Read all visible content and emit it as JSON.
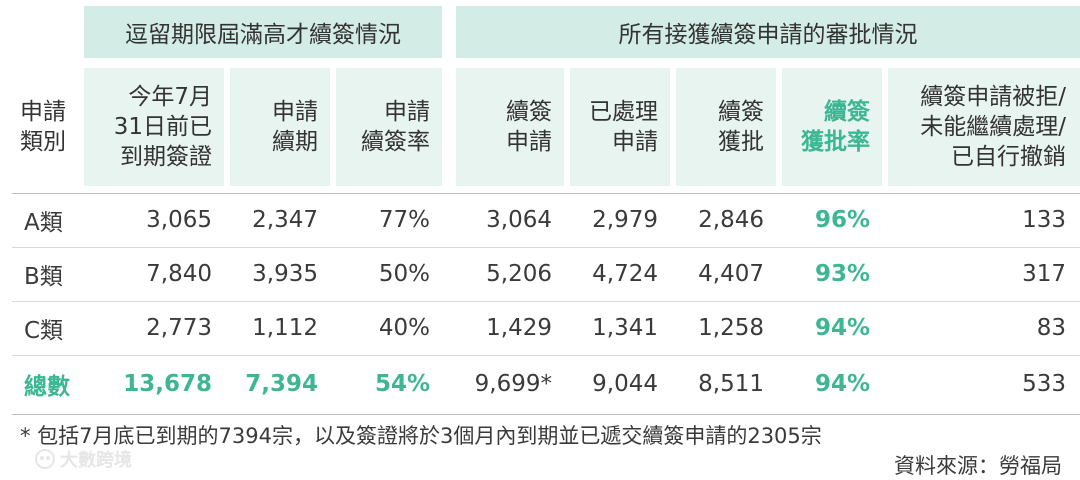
{
  "group_headers": {
    "left": "逗留期限屆滿高才續簽情況",
    "right": "所有接獲續簽申請的審批情況"
  },
  "columns": {
    "category": "申請\n類別",
    "expiring": "今年7月\n31日前已\n到期簽證",
    "applied": "申請\n續期",
    "renewal_rate": "申請\n續簽率",
    "renewal_apps": "續簽\n申請",
    "processed": "已處理\n申請",
    "approved": "續簽\n獲批",
    "approval_rate": "續簽\n獲批率",
    "rejected": "續簽申請被拒/\n未能繼續處理/\n已自行撤銷"
  },
  "rows": [
    {
      "category": "A類",
      "expiring": "3,065",
      "applied": "2,347",
      "renewal_rate": "77%",
      "renewal_apps": "3,064",
      "processed": "2,979",
      "approved": "2,846",
      "approval_rate": "96%",
      "rejected": "133"
    },
    {
      "category": "B類",
      "expiring": "7,840",
      "applied": "3,935",
      "renewal_rate": "50%",
      "renewal_apps": "5,206",
      "processed": "4,724",
      "approved": "4,407",
      "approval_rate": "93%",
      "rejected": "317"
    },
    {
      "category": "C類",
      "expiring": "2,773",
      "applied": "1,112",
      "renewal_rate": "40%",
      "renewal_apps": "1,429",
      "processed": "1,341",
      "approved": "1,258",
      "approval_rate": "94%",
      "rejected": "83"
    }
  ],
  "total": {
    "category": "總數",
    "expiring": "13,678",
    "applied": "7,394",
    "renewal_rate": "54%",
    "renewal_apps": "9,699*",
    "processed": "9,044",
    "approved": "8,511",
    "approval_rate": "94%",
    "rejected": "533"
  },
  "footnote": "* 包括7月底已到期的7394宗，以及簽證將於3個月內到期並已遞交續簽申請的2305宗",
  "source": "資料來源：勞福局",
  "watermark": "大數跨境",
  "colors": {
    "accent": "#3db694",
    "header_bg": "#d3ede6",
    "col_bg": "#e8f4f0"
  }
}
